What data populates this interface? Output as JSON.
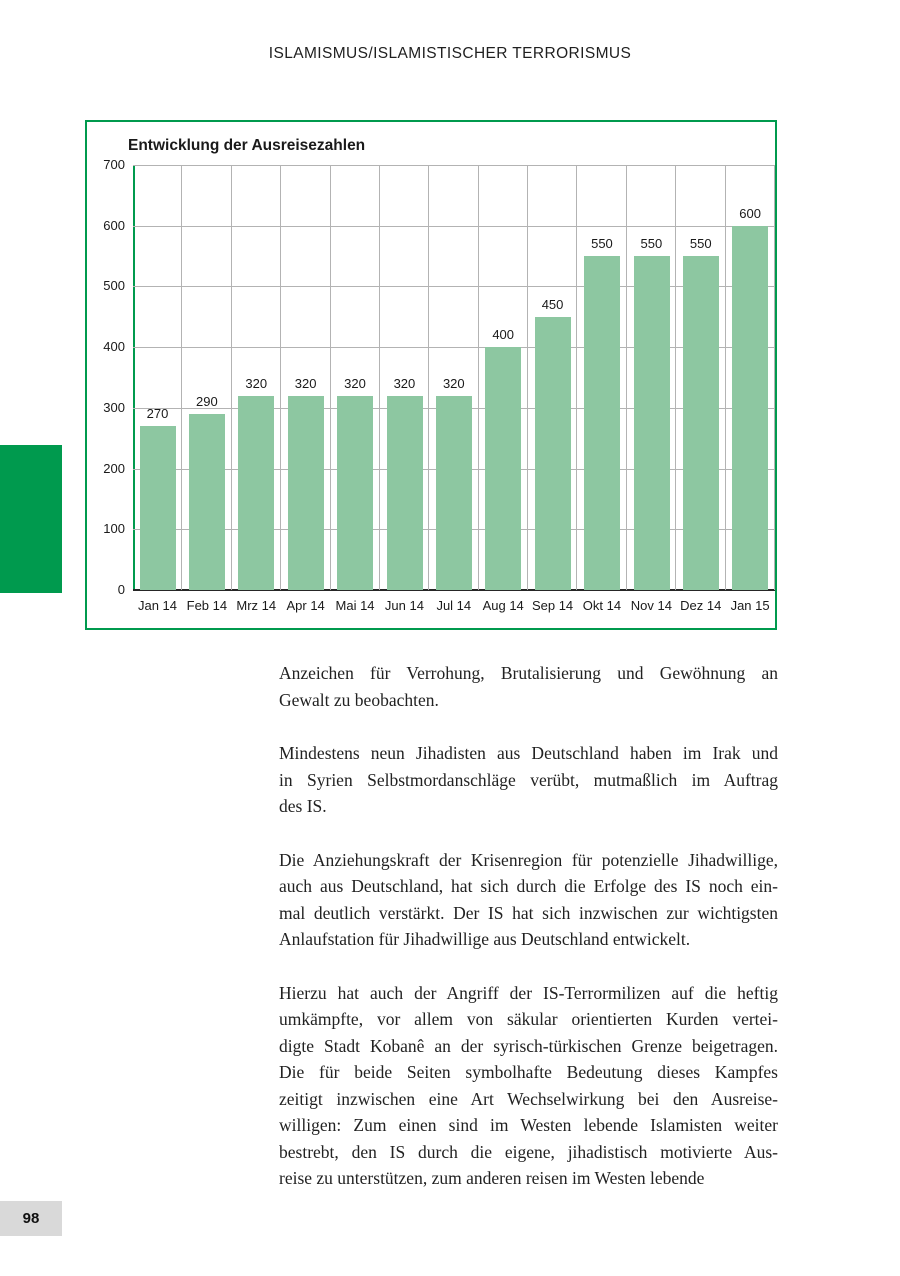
{
  "header": {
    "title": "ISLAMISMUS/ISLAMISTISCHER TERRORISMUS"
  },
  "chart_data": {
    "type": "bar",
    "title": "Entwicklung der Ausreisezahlen",
    "categories": [
      "Jan 14",
      "Feb 14",
      "Mrz 14",
      "Apr 14",
      "Mai 14",
      "Jun 14",
      "Jul 14",
      "Aug 14",
      "Sep 14",
      "Okt 14",
      "Nov 14",
      "Dez 14",
      "Jan 15"
    ],
    "values": [
      270,
      290,
      320,
      320,
      320,
      320,
      320,
      400,
      450,
      550,
      550,
      550,
      600
    ],
    "ylim": [
      0,
      700
    ],
    "ytick_step": 100,
    "grid": "horizontal-and-vertical",
    "legend": "none",
    "data_labels": true,
    "bar_color": "#8dc7a1",
    "frame_color": "#009a4e",
    "y_axis_color": "#009a4e",
    "x_axis_color": "#262626",
    "gridline_color": "#b3b3b3"
  },
  "body": {
    "paragraphs": [
      [
        "Anzeichen für Verrohung, Brutalisierung und Gewöhnung an",
        "Gewalt zu beobachten."
      ],
      [
        "Mindestens neun Jihadisten aus Deutschland haben im Irak und",
        "in Syrien Selbstmordanschläge verübt, mutmaßlich im Auftrag",
        "des IS."
      ],
      [
        "Die Anziehungskraft der Krisenregion für potenzielle Jihadwillige,",
        "auch aus Deutschland, hat sich durch die Erfolge des IS noch ein-",
        "mal deutlich verstärkt. Der IS hat sich inzwischen zur wichtigsten",
        "Anlaufstation für Jihadwillige aus Deutschland entwickelt."
      ],
      [
        "Hierzu hat auch der Angriff der IS-Terrormilizen auf die heftig",
        "umkämpfte, vor allem von säkular orientierten Kurden vertei-",
        "digte Stadt Kobanê an der syrisch-türkischen Grenze beigetragen.",
        "Die für beide Seiten symbolhafte Bedeutung dieses Kampfes",
        "zeitigt inzwischen eine Art Wechselwirkung bei den Ausreise-",
        "willigen: Zum einen sind im Westen lebende Islamisten weiter",
        "bestrebt, den IS durch die eigene, jihadistisch motivierte Aus-",
        "reise zu unterstützen, zum anderen reisen im Westen lebende"
      ]
    ]
  },
  "page": {
    "number": "98",
    "accent_color": "#009a4e"
  }
}
